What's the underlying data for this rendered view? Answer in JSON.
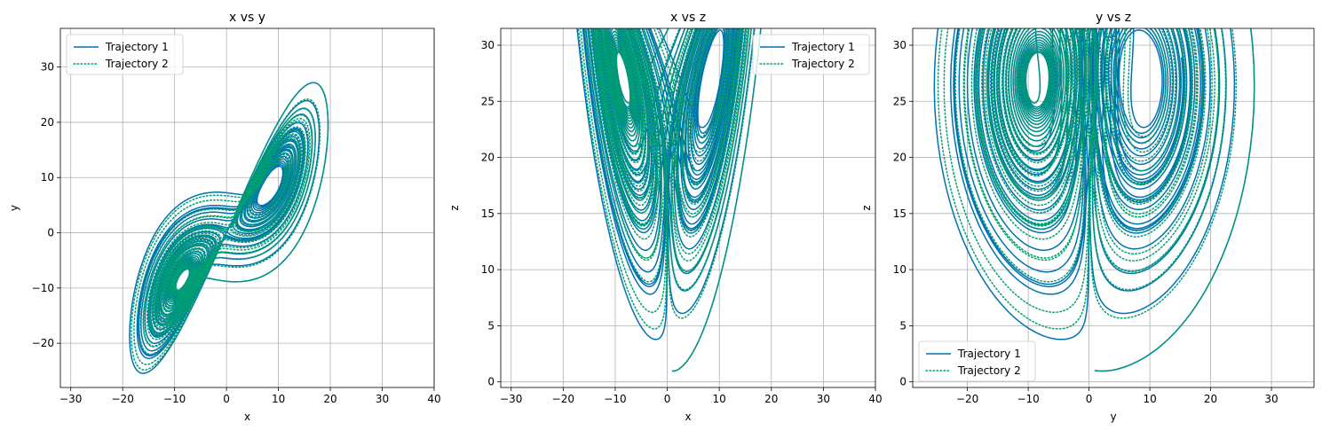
{
  "chart_data": [
    {
      "type": "line",
      "title": "x vs y",
      "xlabel": "x",
      "ylabel": "y",
      "xlim": [
        -32,
        40
      ],
      "ylim": [
        -28,
        37
      ],
      "xticks": [
        -30,
        -20,
        -10,
        0,
        10,
        20,
        30,
        40
      ],
      "yticks": [
        -20,
        -10,
        0,
        10,
        20,
        30
      ],
      "grid": true,
      "legend": "top-left",
      "series": [
        {
          "name": "Trajectory 1",
          "color": "#0072B2",
          "style": "solid"
        },
        {
          "name": "Trajectory 2",
          "color": "#009E73",
          "style": "dotted"
        }
      ]
    },
    {
      "type": "line",
      "title": "x vs z",
      "xlabel": "x",
      "ylabel": "z",
      "xlim": [
        -32,
        40
      ],
      "ylim": [
        -0.5,
        31.5
      ],
      "xticks": [
        -30,
        -20,
        -10,
        0,
        10,
        20,
        30,
        40
      ],
      "yticks": [
        0,
        5,
        10,
        15,
        20,
        25,
        30
      ],
      "grid": true,
      "legend": "top-right",
      "series": [
        {
          "name": "Trajectory 1",
          "color": "#0072B2",
          "style": "solid"
        },
        {
          "name": "Trajectory 2",
          "color": "#009E73",
          "style": "dotted"
        }
      ]
    },
    {
      "type": "line",
      "title": "y vs z",
      "xlabel": "y",
      "ylabel": "z",
      "xlim": [
        -29,
        37
      ],
      "ylim": [
        -0.5,
        31.5
      ],
      "xticks": [
        -20,
        -10,
        0,
        10,
        20,
        30
      ],
      "yticks": [
        0,
        5,
        10,
        15,
        20,
        25,
        30
      ],
      "grid": true,
      "legend": "bottom-left",
      "series": [
        {
          "name": "Trajectory 1",
          "color": "#0072B2",
          "style": "solid"
        },
        {
          "name": "Trajectory 2",
          "color": "#009E73",
          "style": "dotted"
        }
      ]
    }
  ]
}
